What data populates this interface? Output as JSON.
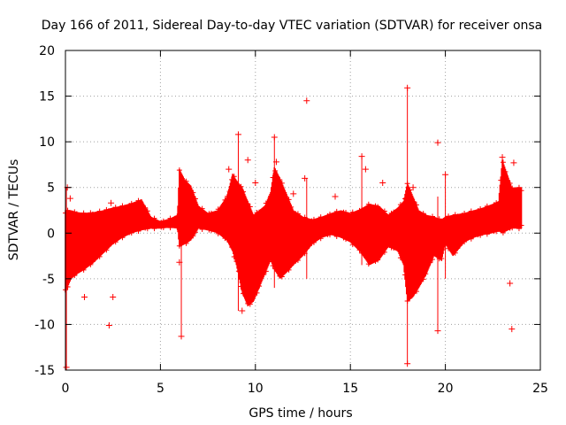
{
  "chart_data": {
    "type": "scatter",
    "title": "Day 166 of 2011, Sidereal Day-to-day VTEC variation (SDTVAR) for receiver onsa",
    "xlabel": "GPS time / hours",
    "ylabel": "SDTVAR / TECUs",
    "xlim": [
      0,
      25
    ],
    "ylim": [
      -15,
      20
    ],
    "grid": true,
    "marker": "+",
    "colors": {
      "series": "#ff0000",
      "grid": "#a0a0a0",
      "axis": "#000000"
    },
    "x_ticks": [
      0,
      5,
      10,
      15,
      20,
      25
    ],
    "y_ticks": [
      -15,
      -10,
      -5,
      0,
      5,
      10,
      15,
      20
    ],
    "x_tick_labels": [
      "0",
      "5",
      "10",
      "15",
      "20",
      "25"
    ],
    "y_tick_labels": [
      "-15",
      "-10",
      "-5",
      "0",
      "5",
      "10",
      "15",
      "20"
    ],
    "band": {
      "name": "SDTVAR",
      "x": [
        0.0,
        0.3,
        0.6,
        1.0,
        1.5,
        2.0,
        2.5,
        3.0,
        3.5,
        4.0,
        4.5,
        5.0,
        5.5,
        5.9,
        6.0,
        6.3,
        6.6,
        7.0,
        7.5,
        8.0,
        8.5,
        8.8,
        9.0,
        9.3,
        9.6,
        9.9,
        10.2,
        10.5,
        10.8,
        11.0,
        11.3,
        11.7,
        12.0,
        12.5,
        13.0,
        13.5,
        14.0,
        14.5,
        15.0,
        15.5,
        16.0,
        16.5,
        17.0,
        17.5,
        17.8,
        18.0,
        18.3,
        18.6,
        19.0,
        19.4,
        19.8,
        20.0,
        20.4,
        21.0,
        21.5,
        22.0,
        22.5,
        22.8,
        23.0,
        23.5,
        24.0
      ],
      "upper": [
        2.5,
        2.5,
        2.3,
        2.2,
        2.3,
        2.5,
        2.8,
        3.0,
        3.3,
        3.7,
        1.8,
        1.3,
        1.6,
        2.0,
        7.0,
        5.8,
        5.2,
        3.0,
        2.2,
        2.5,
        4.0,
        6.5,
        5.8,
        5.0,
        3.5,
        2.0,
        2.5,
        3.0,
        4.5,
        7.2,
        6.0,
        4.0,
        2.5,
        1.8,
        1.5,
        1.8,
        2.2,
        2.5,
        2.2,
        2.6,
        3.2,
        3.0,
        2.0,
        2.8,
        3.5,
        5.5,
        4.0,
        2.5,
        2.0,
        1.8,
        1.5,
        1.8,
        2.0,
        2.2,
        2.5,
        2.8,
        3.2,
        3.5,
        8.0,
        5.0,
        5.0
      ],
      "lower": [
        -6.5,
        -5.0,
        -4.5,
        -4.0,
        -3.2,
        -2.2,
        -1.2,
        -0.5,
        0.0,
        0.3,
        0.5,
        0.5,
        0.6,
        0.5,
        -1.5,
        -1.2,
        -0.8,
        0.5,
        0.3,
        0.0,
        -0.8,
        -2.0,
        -3.5,
        -6.5,
        -8.0,
        -7.5,
        -6.0,
        -4.5,
        -3.0,
        -4.0,
        -5.0,
        -4.2,
        -3.5,
        -2.5,
        -1.2,
        -0.5,
        -0.2,
        -0.5,
        -1.0,
        -2.0,
        -3.5,
        -3.0,
        -1.5,
        -2.0,
        -3.5,
        -7.5,
        -7.0,
        -6.0,
        -4.5,
        -2.5,
        -3.0,
        -1.2,
        -2.5,
        -1.0,
        -0.5,
        -0.2,
        0.0,
        0.2,
        0.0,
        0.5,
        0.5
      ]
    },
    "points": [
      {
        "x": 0.05,
        "y": -14.7
      },
      {
        "x": 0.1,
        "y": 5.0
      },
      {
        "x": 0.25,
        "y": 3.8
      },
      {
        "x": 1.0,
        "y": -7.0
      },
      {
        "x": 2.3,
        "y": -10.1
      },
      {
        "x": 2.4,
        "y": 3.3
      },
      {
        "x": 2.5,
        "y": -7.0
      },
      {
        "x": 6.1,
        "y": -11.3
      },
      {
        "x": 6.0,
        "y": -3.2
      },
      {
        "x": 8.6,
        "y": 7.0
      },
      {
        "x": 9.1,
        "y": 10.8
      },
      {
        "x": 9.3,
        "y": -8.5
      },
      {
        "x": 9.6,
        "y": 8.0
      },
      {
        "x": 10.0,
        "y": 5.5
      },
      {
        "x": 11.0,
        "y": 10.5
      },
      {
        "x": 11.1,
        "y": 7.8
      },
      {
        "x": 12.0,
        "y": 4.3
      },
      {
        "x": 12.7,
        "y": 14.5
      },
      {
        "x": 12.6,
        "y": 6.0
      },
      {
        "x": 14.2,
        "y": 4.0
      },
      {
        "x": 15.6,
        "y": 8.4
      },
      {
        "x": 15.8,
        "y": 7.0
      },
      {
        "x": 16.7,
        "y": 5.5
      },
      {
        "x": 18.0,
        "y": 15.9
      },
      {
        "x": 18.0,
        "y": -14.3
      },
      {
        "x": 18.3,
        "y": 5.0
      },
      {
        "x": 19.6,
        "y": 9.9
      },
      {
        "x": 19.6,
        "y": -10.7
      },
      {
        "x": 20.0,
        "y": 6.4
      },
      {
        "x": 23.4,
        "y": -5.5
      },
      {
        "x": 23.5,
        "y": -10.5
      },
      {
        "x": 23.6,
        "y": 7.7
      },
      {
        "x": 23.0,
        "y": 8.3
      }
    ],
    "stems": [
      {
        "x": 0.05,
        "y0": -14.7,
        "y1": 5.0
      },
      {
        "x": 6.1,
        "y0": -11.3,
        "y1": 6.5
      },
      {
        "x": 9.1,
        "y0": -8.5,
        "y1": 10.8
      },
      {
        "x": 11.0,
        "y0": -6.0,
        "y1": 10.5
      },
      {
        "x": 12.7,
        "y0": -5.0,
        "y1": 6.0
      },
      {
        "x": 15.6,
        "y0": -3.5,
        "y1": 8.4
      },
      {
        "x": 18.0,
        "y0": -14.3,
        "y1": 15.9
      },
      {
        "x": 19.6,
        "y0": -10.7,
        "y1": 4.0
      },
      {
        "x": 20.0,
        "y0": -5.0,
        "y1": 6.4
      }
    ]
  }
}
